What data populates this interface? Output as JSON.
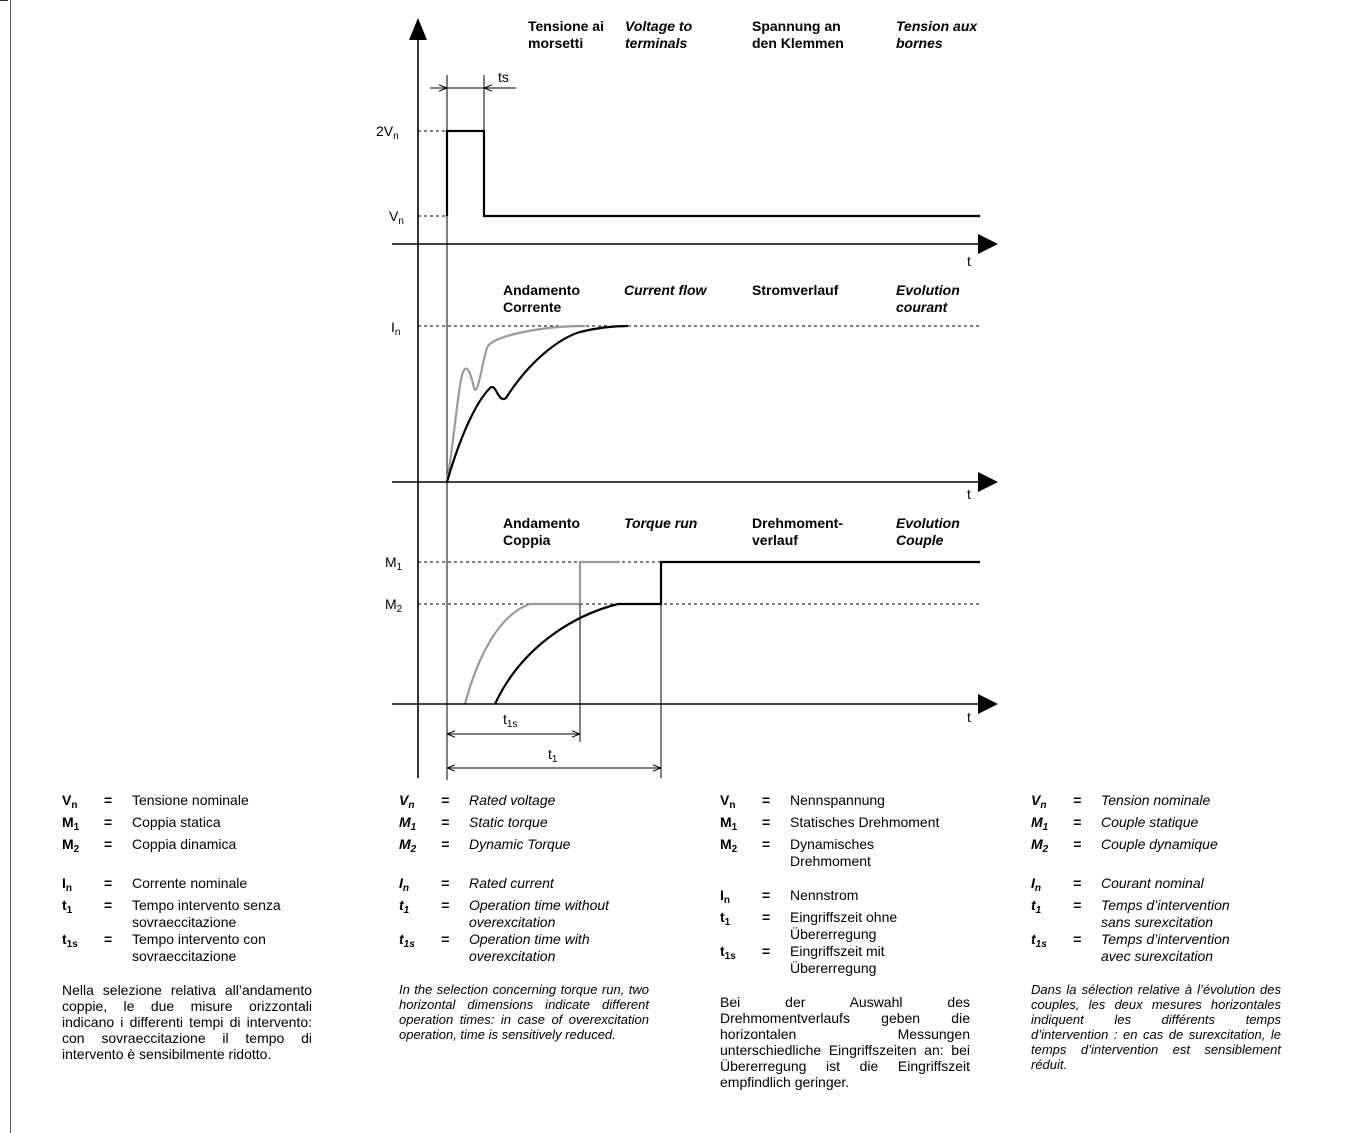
{
  "panels": {
    "voltage": {
      "headers": [
        {
          "line1": "Tensione ai",
          "line2": "morsetti",
          "italic": false
        },
        {
          "line1": "Voltage to",
          "line2": "terminals",
          "italic": true
        },
        {
          "line1": "Spannung an",
          "line2": "den Klemmen",
          "italic": false
        },
        {
          "line1": "Tension aux",
          "line2": "bornes",
          "italic": true
        }
      ],
      "y_labels": [
        {
          "main": "2V",
          "sub": "n"
        },
        {
          "main": "V",
          "sub": "n"
        }
      ],
      "x_label": "t",
      "ts_label": "ts"
    },
    "current": {
      "headers": [
        {
          "line1": "Andamento",
          "line2": "Corrente",
          "italic": false
        },
        {
          "line1": "Current flow",
          "line2": "",
          "italic": true
        },
        {
          "line1": "Stromverlauf",
          "line2": "",
          "italic": false
        },
        {
          "line1": "Evolution",
          "line2": "courant",
          "italic": true
        }
      ],
      "y_labels": [
        {
          "main": "I",
          "sub": "n"
        }
      ],
      "x_label": "t"
    },
    "torque": {
      "headers": [
        {
          "line1": "Andamento",
          "line2": "Coppia",
          "italic": false
        },
        {
          "line1": "Torque run",
          "line2": "",
          "italic": true
        },
        {
          "line1": "Drehmoment-",
          "line2": "verlauf",
          "italic": false
        },
        {
          "line1": "Evolution",
          "line2": "Couple",
          "italic": true
        }
      ],
      "y_labels": [
        {
          "main": "M",
          "sub": "1"
        },
        {
          "main": "M",
          "sub": "2"
        }
      ],
      "x_label": "t",
      "dim_t1s": {
        "main": "t",
        "sub": "1s"
      },
      "dim_t1": {
        "main": "t",
        "sub": "1"
      }
    }
  },
  "legends": [
    {
      "italic": false,
      "groups": [
        [
          {
            "sym": "V",
            "sub": "n",
            "desc": [
              "Tensione nominale"
            ]
          },
          {
            "sym": "M",
            "sub": "1",
            "desc": [
              "Coppia statica"
            ]
          },
          {
            "sym": "M",
            "sub": "2",
            "desc": [
              "Coppia dinamica"
            ]
          }
        ],
        [
          {
            "sym": "I",
            "sub": "n",
            "desc": [
              "Corrente nominale"
            ]
          },
          {
            "sym": "t",
            "sub": "1",
            "desc": [
              "Tempo intervento senza",
              "sovraeccitazione"
            ]
          },
          {
            "sym": "t",
            "sub": "1s",
            "desc": [
              "Tempo intervento con",
              "sovraeccitazione"
            ]
          }
        ]
      ],
      "note": "Nella selezione relativa all’andamento coppie, le due misure orizzontali indicano i differenti tempi di intervento: con sovraeccitazione il tempo di intervento è sensibilmente ridotto."
    },
    {
      "italic": true,
      "groups": [
        [
          {
            "sym": "V",
            "sub": "n",
            "desc": [
              "Rated voltage"
            ]
          },
          {
            "sym": "M",
            "sub": "1",
            "desc": [
              "Static torque"
            ]
          },
          {
            "sym": "M",
            "sub": "2",
            "desc": [
              "Dynamic Torque"
            ]
          }
        ],
        [
          {
            "sym": "I",
            "sub": "n",
            "desc": [
              "Rated current"
            ]
          },
          {
            "sym": "t",
            "sub": "1",
            "desc": [
              "Operation time without",
              "overexcitation"
            ]
          },
          {
            "sym": "t",
            "sub": "1s",
            "desc": [
              "Operation time with",
              "overexcitation"
            ]
          }
        ]
      ],
      "note": "In the selection concerning torque run, two horizontal dimensions indicate different operation times: in case of overexcitation operation, time is sensitively reduced."
    },
    {
      "italic": false,
      "groups": [
        [
          {
            "sym": "V",
            "sub": "n",
            "desc": [
              "Nennspannung"
            ]
          },
          {
            "sym": "M",
            "sub": "1",
            "desc": [
              "Statisches Drehmoment"
            ]
          },
          {
            "sym": "M",
            "sub": "2",
            "desc": [
              "Dynamisches",
              "Drehmoment"
            ]
          }
        ],
        [
          {
            "sym": "I",
            "sub": "n",
            "desc": [
              "Nennstrom"
            ]
          },
          {
            "sym": "t",
            "sub": "1",
            "desc": [
              "Eingriffszeit ohne",
              "Übererregung"
            ]
          },
          {
            "sym": "t",
            "sub": "1s",
            "desc": [
              "Eingriffszeit mit",
              "Übererregung"
            ]
          }
        ]
      ],
      "note": "Bei der Auswahl des Drehmomentverlaufs geben die horizontalen Messungen unterschiedliche Eingriffszeiten an: bei Übererregung ist die Eingriffszeit empfindlich geringer."
    },
    {
      "italic": true,
      "groups": [
        [
          {
            "sym": "V",
            "sub": "n",
            "desc": [
              "Tension nominale"
            ]
          },
          {
            "sym": "M",
            "sub": "1",
            "desc": [
              "Couple statique"
            ]
          },
          {
            "sym": "M",
            "sub": "2",
            "desc": [
              "Couple dynamique"
            ]
          }
        ],
        [
          {
            "sym": "I",
            "sub": "n",
            "desc": [
              "Courant nominal"
            ]
          },
          {
            "sym": "t",
            "sub": "1",
            "desc": [
              "Temps d’intervention",
              "sans surexcitation"
            ]
          },
          {
            "sym": "t",
            "sub": "1s",
            "desc": [
              "Temps d’intervention",
              "avec surexcitation"
            ]
          }
        ]
      ],
      "note": "Dans la sélection relative à l’évolution des couples, les deux mesures horizontales indiquent les différents temps d’intervention : en cas de surexcitation, le temps d’intervention est sensiblement réduit."
    }
  ],
  "colors": {
    "curve_black": "#000000",
    "curve_gray": "#9a9a9a"
  },
  "eq": "="
}
